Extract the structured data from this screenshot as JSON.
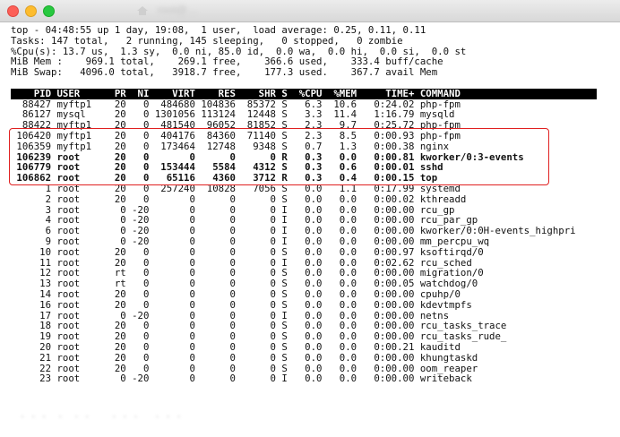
{
  "window": {
    "title": "root@…"
  },
  "summary": [
    "top - 04:48:55 up 1 day, 19:08,  1 user,  load average: 0.25, 0.11, 0.11",
    "Tasks: 147 total,   2 running, 145 sleeping,   0 stopped,   0 zombie",
    "%Cpu(s): 13.7 us,  1.3 sy,  0.0 ni, 85.0 id,  0.0 wa,  0.0 hi,  0.0 si,  0.0 st",
    "MiB Mem :    969.1 total,    269.1 free,    366.6 used,    333.4 buff/cache",
    "MiB Swap:   4096.0 total,   3918.7 free,    177.3 used.    367.7 avail Mem"
  ],
  "table_header": "    PID USER      PR  NI    VIRT    RES    SHR S  %CPU  %MEM     TIME+ COMMAND                 ",
  "processes": [
    "  88427 myftp1    20   0  484680 104836  85372 S   6.3  10.6   0:24.02 php-fpm",
    "  86127 mysql     20   0 1301056 113124  12448 S   3.3  11.4   1:16.79 mysqld",
    "  88422 myftp1    20   0  481540  96052  81852 S   2.3   9.7   0:25.72 php-fpm",
    " 106420 myftp1    20   0  404176  84360  71140 S   2.3   8.5   0:00.93 php-fpm",
    " 106359 myftp1    20   0  173464  12748   9348 S   0.7   1.3   0:00.38 nginx",
    " 106239 root      20   0       0      0      0 R   0.3   0.0   0:00.81 kworker/0:3-events",
    " 106779 root      20   0  153444   5584   4312 S   0.3   0.6   0:00.01 sshd",
    " 106862 root      20   0   65116   4360   3712 R   0.3   0.4   0:00.15 top",
    "      1 root      20   0  257240  10828   7056 S   0.0   1.1   0:17.99 systemd",
    "      2 root      20   0       0      0      0 S   0.0   0.0   0:00.02 kthreadd",
    "      3 root       0 -20       0      0      0 I   0.0   0.0   0:00.00 rcu_gp",
    "      4 root       0 -20       0      0      0 I   0.0   0.0   0:00.00 rcu_par_gp",
    "      6 root       0 -20       0      0      0 I   0.0   0.0   0:00.00 kworker/0:0H-events_highpri",
    "      9 root       0 -20       0      0      0 I   0.0   0.0   0:00.00 mm_percpu_wq",
    "     10 root      20   0       0      0      0 S   0.0   0.0   0:00.97 ksoftirqd/0",
    "     11 root      20   0       0      0      0 I   0.0   0.0   0:02.62 rcu_sched",
    "     12 root      rt   0       0      0      0 S   0.0   0.0   0:00.00 migration/0",
    "     13 root      rt   0       0      0      0 S   0.0   0.0   0:00.05 watchdog/0",
    "     14 root      20   0       0      0      0 S   0.0   0.0   0:00.00 cpuhp/0",
    "     16 root      20   0       0      0      0 S   0.0   0.0   0:00.00 kdevtmpfs",
    "     17 root       0 -20       0      0      0 I   0.0   0.0   0:00.00 netns",
    "     18 root      20   0       0      0      0 S   0.0   0.0   0:00.00 rcu_tasks_trace",
    "     19 root      20   0       0      0      0 S   0.0   0.0   0:00.00 rcu_tasks_rude_",
    "     20 root      20   0       0      0      0 S   0.0   0.0   0:00.21 kauditd",
    "     21 root      20   0       0      0      0 S   0.0   0.0   0:00.00 khungtaskd",
    "     22 root      20   0       0      0      0 S   0.0   0.0   0:00.00 oom_reaper",
    "     23 root       0 -20       0      0      0 I   0.0   0.0   0:00.00 writeback"
  ],
  "bold_rows": [
    5,
    6,
    7
  ],
  "colors": {
    "highlight_border": "#e02020",
    "header_bg": "#000000",
    "header_fg": "#ffffff"
  },
  "icons": [
    "close-button-icon",
    "minimize-button-icon",
    "maximize-button-icon",
    "home-folder-icon"
  ]
}
